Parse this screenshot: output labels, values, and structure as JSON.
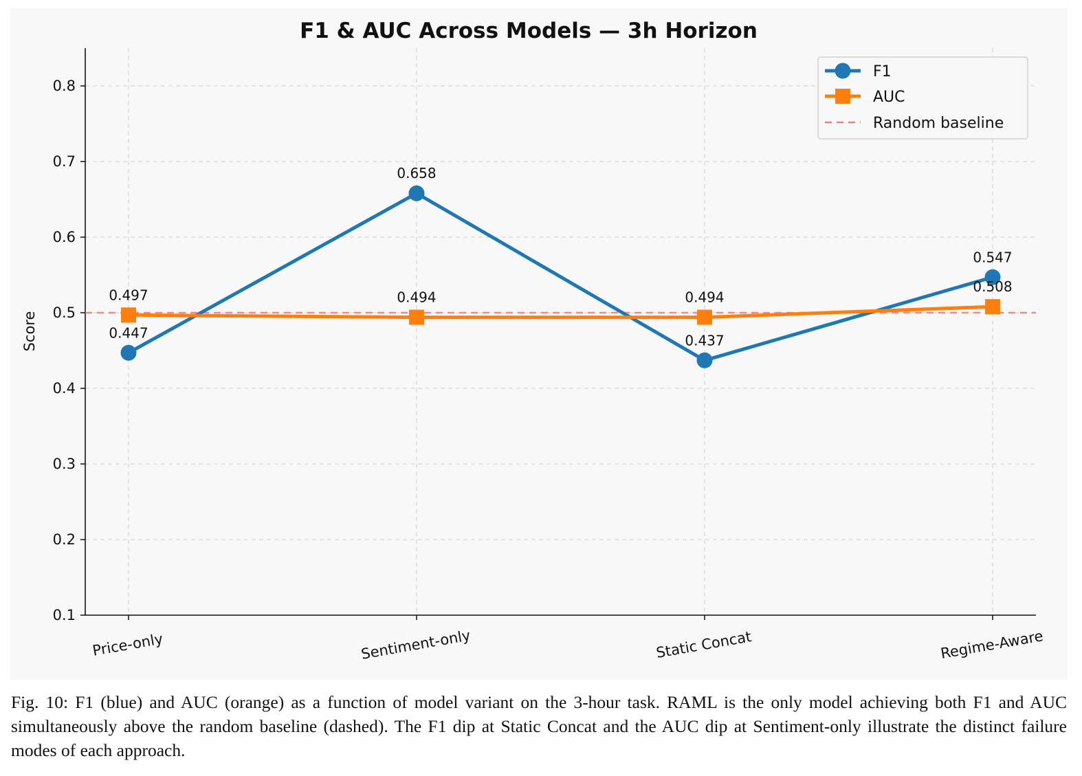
{
  "chart_data": {
    "type": "line",
    "title": "F1 & AUC Across Models — 3h Horizon",
    "xlabel": "",
    "ylabel": "Score",
    "categories": [
      "Price-only",
      "Sentiment-only",
      "Static Concat",
      "Regime-Aware"
    ],
    "ylim": [
      0.1,
      0.85
    ],
    "yticks": [
      "0.1",
      "0.2",
      "0.3",
      "0.4",
      "0.5",
      "0.6",
      "0.7",
      "0.8"
    ],
    "grid": true,
    "legend_position": "top-right",
    "series": [
      {
        "name": "F1",
        "values": [
          0.447,
          0.658,
          0.437,
          0.547
        ],
        "labels": [
          "0.447",
          "0.658",
          "0.437",
          "0.547"
        ],
        "color": "#1f77b4",
        "marker": "circle"
      },
      {
        "name": "AUC",
        "values": [
          0.497,
          0.494,
          0.494,
          0.508
        ],
        "labels": [
          "0.497",
          "0.494",
          "0.494",
          "0.508"
        ],
        "color": "#ff7f0e",
        "marker": "square"
      }
    ],
    "baseline": {
      "name": "Random baseline",
      "value": 0.5,
      "color": "#f08080",
      "style": "dashed"
    }
  },
  "caption": "Fig. 10: F1 (blue) and AUC (orange) as a function of model variant on the 3-hour task. RAML is the only model achieving both F1 and AUC simultaneously above the random baseline (dashed). The F1 dip at Static Concat and the AUC dip at Sentiment-only illustrate the distinct failure modes of each approach."
}
